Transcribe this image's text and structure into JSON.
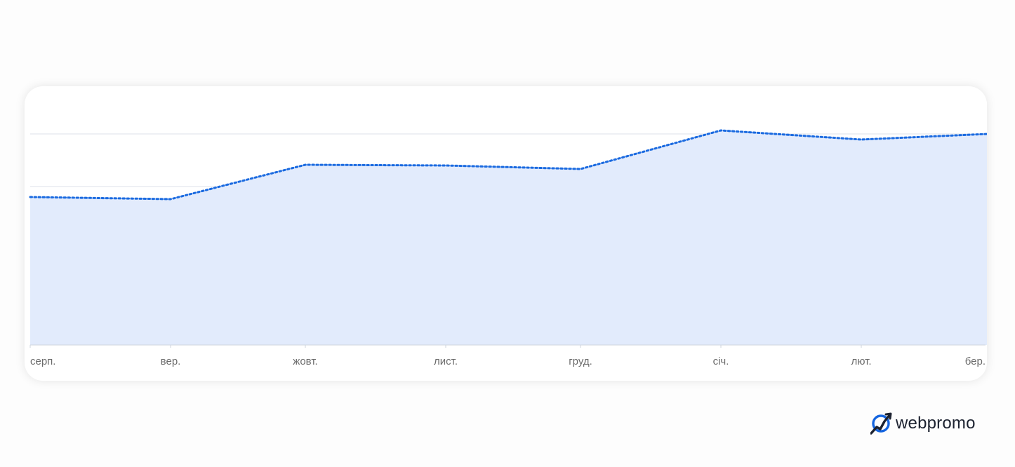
{
  "chart_data": {
    "type": "area",
    "categories": [
      "серп.",
      "вер.",
      "жовт.",
      "лист.",
      "груд.",
      "січ.",
      "лют.",
      "бер."
    ],
    "series": [
      {
        "values": [
          281,
          284,
          235,
          236,
          241,
          186,
          199,
          191
        ]
      }
    ],
    "x_positions": [
      0,
      200,
      392,
      592,
      784,
      984,
      1184,
      1364
    ],
    "ylim": [
      492,
      170
    ],
    "gridlines": [
      191,
      266,
      342,
      417
    ],
    "grid": true,
    "colors": {
      "line": "#1a6ae0",
      "fill": "#e2ebfc",
      "grid": "#e3e6ee",
      "axis": "#cfd4de"
    }
  },
  "brand": {
    "name": "webpromo",
    "logo_icon": "webpromo-logo-icon",
    "color": "#1565e0"
  }
}
